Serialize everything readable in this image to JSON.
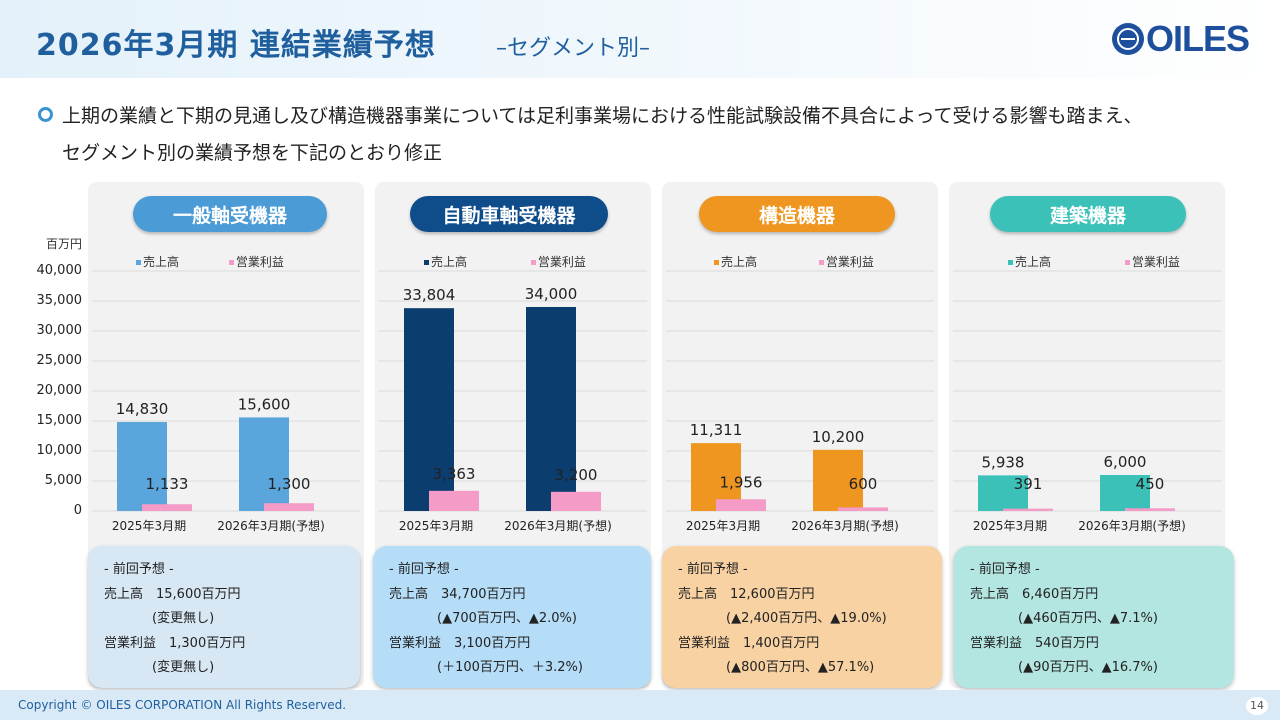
{
  "title": "2026年3月期 連結業績予想",
  "subtitle": "–セグメント別–",
  "logo": "OILES",
  "intro": {
    "line1": "上期の業績と下期の見通し及び構造機器事業については足利事業場における性能試験設備不具合によって受ける影響も踏まえ、",
    "line2": "セグメント別の業績予想を下記のとおり修正"
  },
  "chart_data": {
    "type": "bar",
    "unit": "百万円",
    "ylim": [
      0,
      40000
    ],
    "yticks": [
      "40,000",
      "35,000",
      "30,000",
      "25,000",
      "20,000",
      "15,000",
      "10,000",
      "5,000",
      "0"
    ],
    "ytick_values": [
      40000,
      35000,
      30000,
      25000,
      20000,
      15000,
      10000,
      5000,
      0
    ],
    "categories": [
      "2025年3月期",
      "2026年3月期(予想)"
    ],
    "legend": [
      "売上高",
      "営業利益"
    ],
    "segments": [
      {
        "name": "一般軸受機器",
        "color": "#5aa6dc",
        "series": [
          {
            "name": "売上高",
            "values": [
              14830,
              15600
            ],
            "labels": [
              "14,830",
              "15,600"
            ]
          },
          {
            "name": "営業利益",
            "values": [
              1133,
              1300
            ],
            "labels": [
              "1,133",
              "1,300"
            ]
          }
        ]
      },
      {
        "name": "自動車軸受機器",
        "color": "#0b3d6e",
        "series": [
          {
            "name": "売上高",
            "values": [
              33804,
              34000
            ],
            "labels": [
              "33,804",
              "34,000"
            ]
          },
          {
            "name": "営業利益",
            "values": [
              3363,
              3200
            ],
            "labels": [
              "3,363",
              "3,200"
            ]
          }
        ]
      },
      {
        "name": "構造機器",
        "color": "#ee961f",
        "series": [
          {
            "name": "売上高",
            "values": [
              11311,
              10200
            ],
            "labels": [
              "11,311",
              "10,200"
            ]
          },
          {
            "name": "営業利益",
            "values": [
              1956,
              600
            ],
            "labels": [
              "1,956",
              "600"
            ]
          }
        ]
      },
      {
        "name": "建築機器",
        "color": "#3cc1b9",
        "series": [
          {
            "name": "売上高",
            "values": [
              5938,
              6000
            ],
            "labels": [
              "5,938",
              "6,000"
            ]
          },
          {
            "name": "営業利益",
            "values": [
              391,
              450
            ],
            "labels": [
              "391",
              "450"
            ]
          }
        ]
      }
    ]
  },
  "colors": {
    "profit": "#f59bc7",
    "grid": "#d9d9d9"
  },
  "notes": [
    {
      "heading": "- 前回予想 -",
      "sales": "売上高　15,600百万円",
      "sales_diff": "(変更無し)",
      "profit": "営業利益　1,300百万円",
      "profit_diff": "(変更無し)",
      "bg": "#d7e7f4"
    },
    {
      "heading": "- 前回予想 -",
      "sales": "売上高　34,700百万円",
      "sales_diff": "(▲700百万円、▲2.0%)",
      "profit": "営業利益　3,100百万円",
      "profit_diff": "(＋100百万円、＋3.2%)",
      "bg": "#b6ddf8"
    },
    {
      "heading": "- 前回予想 -",
      "sales": "売上高　12,600百万円",
      "sales_diff": "(▲2,400百万円、▲19.0%)",
      "profit": "営業利益　1,400百万円",
      "profit_diff": "(▲800百万円、▲57.1%)",
      "bg": "#f8d2a2"
    },
    {
      "heading": "- 前回予想 -",
      "sales": "売上高　6,460百万円",
      "sales_diff": "(▲460百万円、▲7.1%)",
      "profit": "営業利益　540百万円",
      "profit_diff": "(▲90百万円、▲16.7%)",
      "bg": "#b4e6e1"
    }
  ],
  "footer": {
    "copyright": "Copyright © OILES CORPORATION All Rights Reserved.",
    "page": "14"
  }
}
